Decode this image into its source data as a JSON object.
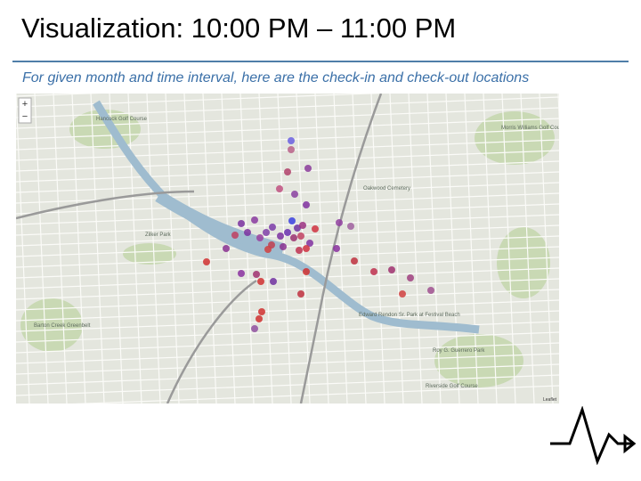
{
  "header": {
    "title": "Visualization: 10:00 PM – 11:00 PM",
    "subtitle": "For given month and time interval, here are the check-in and check-out locations"
  },
  "map": {
    "zoom_in": "+",
    "zoom_out": "−",
    "attribution": "Leaflet",
    "labels": [
      "Hancock Golf Course",
      "Morris Williams Golf Course",
      "Oakwood Cemetery",
      "Zilker Park",
      "Barton Creek Greenbelt",
      "Edward Rendon Sr. Park at Festival Beach",
      "Roy G. Guerrero Park",
      "Riverside Golf Course"
    ]
  }
}
